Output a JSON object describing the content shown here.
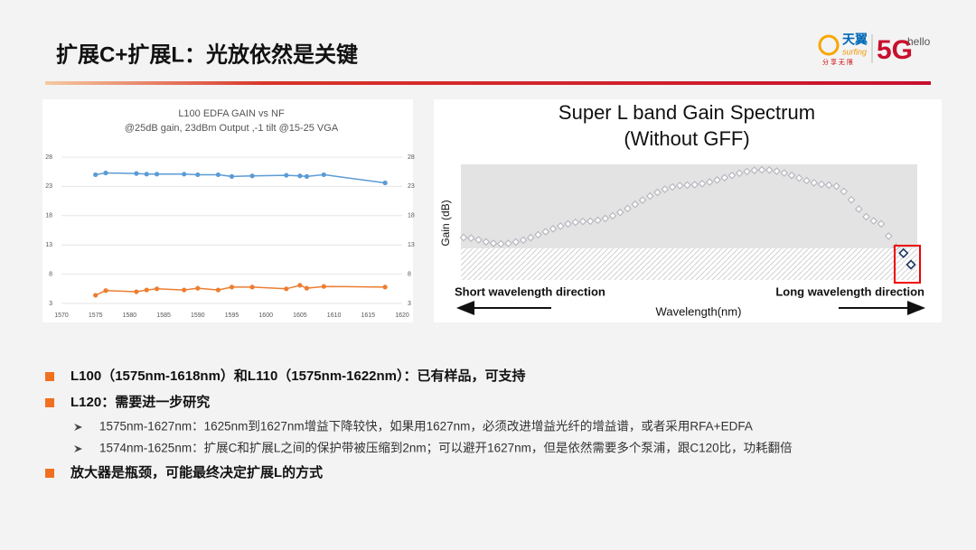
{
  "header": {
    "title": "扩展C+扩展L：光放依然是关键",
    "logo": {
      "brand": "天翼",
      "brand_en": "surfing",
      "slogan": "分 享 无 限",
      "fiveg": "5G",
      "hello": "hello"
    }
  },
  "left_chart": {
    "type": "line",
    "title": "L100 EDFA GAIN vs NF",
    "subtitle": "@25dB gain, 23dBm Output ,-1 tilt @15-25 VGA",
    "x": [
      1575,
      1576.5,
      1581,
      1582.5,
      1584,
      1588,
      1590,
      1593,
      1595,
      1598,
      1603,
      1605,
      1606,
      1608.5,
      1617.5
    ],
    "series": [
      {
        "color": "#5b9bd5",
        "values": [
          25.0,
          25.3,
          25.2,
          25.1,
          25.1,
          25.1,
          25.0,
          25.0,
          24.7,
          24.8,
          24.9,
          24.8,
          24.7,
          25.0,
          23.6
        ]
      },
      {
        "color": "#ed7d31",
        "values": [
          4.4,
          5.2,
          5.0,
          5.3,
          5.5,
          5.3,
          5.6,
          5.3,
          5.8,
          5.8,
          5.5,
          6.1,
          5.6,
          5.9,
          5.8
        ]
      }
    ],
    "xlim": [
      1570,
      1620
    ],
    "xticks": [
      1570,
      1575,
      1580,
      1585,
      1590,
      1595,
      1600,
      1605,
      1610,
      1615,
      1620
    ],
    "ylim": [
      3,
      28
    ],
    "yticks": [
      3,
      8,
      13,
      18,
      23,
      28
    ],
    "grid": true
  },
  "right_chart": {
    "title": "Super L  band Gain Spectrum",
    "subtitle": "(Without GFF)",
    "y_label": "Gain (dB)",
    "x_label": "Wavelength(nm)",
    "left_annotation": "Short wavelength direction",
    "right_annotation": "Long wavelength direction"
  },
  "bullets": [
    {
      "level": 1,
      "text": "L100（1575nm-1618nm）和L110（1575nm-1622nm）：已有样品，可支持"
    },
    {
      "level": 1,
      "text": "L120：需要进一步研究"
    },
    {
      "level": 2,
      "text": "1575nm-1627nm：1625nm到1627nm增益下降较快，如果用1627nm，必须改进增益光纤的增益谱，或者采用RFA+EDFA"
    },
    {
      "level": 2,
      "text": "1574nm-1625nm：扩展C和扩展L之间的保护带被压缩到2nm；可以避开1627nm，但是依然需要多个泵浦，跟C120比，功耗翻倍"
    },
    {
      "level": 1,
      "text": "放大器是瓶颈，可能最终决定扩展L的方式"
    }
  ]
}
